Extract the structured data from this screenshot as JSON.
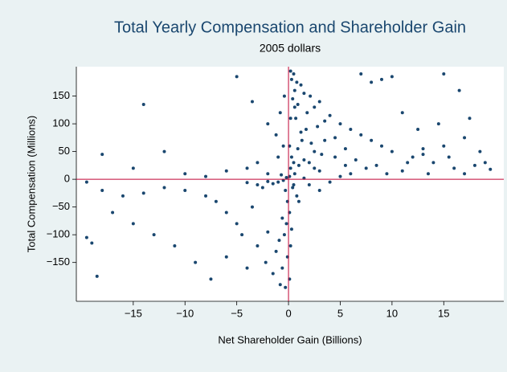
{
  "chart_data": {
    "type": "scatter",
    "title": "Total Yearly Compensation and Shareholder Gain",
    "subtitle": "2005 dollars",
    "x_label": "Net Shareholder Gain (Billions)",
    "y_label": "Total Compensation (Millions)",
    "color": "#1a476f",
    "reference_color": "#c10534",
    "xline": 0,
    "yline": 0,
    "xlim": [
      -20.5,
      20.8
    ],
    "ylim": [
      -220,
      203
    ],
    "xticks": [
      {
        "value": -15,
        "label": "−15"
      },
      {
        "value": -10,
        "label": "−10"
      },
      {
        "value": -5,
        "label": "−5"
      },
      0,
      5,
      10,
      15
    ],
    "yticks": [
      {
        "value": -150,
        "label": "−150"
      },
      {
        "value": -100,
        "label": "−100"
      },
      {
        "value": -50,
        "label": "−50"
      },
      0,
      50,
      100,
      150
    ],
    "x": [
      0.2,
      0.5,
      0.3,
      0.8,
      1.2,
      0.6,
      1.5,
      2.1,
      0.4,
      3,
      0.9,
      2.5,
      1.8,
      4,
      0.7,
      3.5,
      5,
      2.8,
      6,
      1.2,
      7,
      4.5,
      8,
      2.2,
      9,
      5.5,
      10,
      3.2,
      12,
      6.5,
      14,
      8.5,
      16,
      11,
      18,
      13,
      15,
      17,
      19,
      14.5,
      16.5,
      15,
      10,
      9,
      7,
      8,
      11,
      12.5,
      17.5,
      18.5,
      13.5,
      19.5,
      0.1,
      0.3,
      0.5,
      0.2,
      0.6,
      1,
      1.5,
      2,
      2.5,
      3,
      0.1,
      -0.2,
      -0.5,
      -1,
      -1.5,
      -2,
      -3,
      -4,
      -2.5,
      -0.3,
      -0.1,
      0.1,
      -0.2,
      -0.4,
      0.2,
      -0.1,
      -0.6,
      0.1,
      -0.3,
      -0.8,
      -1.5,
      -2.2,
      -1.2,
      -3,
      -4.5,
      -2,
      -5,
      -6,
      -3.5,
      -7,
      -8,
      -10,
      -12,
      -14,
      -16,
      -18,
      -19.5,
      -17,
      -15,
      -13,
      -11,
      -9,
      -7.5,
      -6,
      -4,
      -19,
      -19.5,
      -18.5,
      -14,
      -5,
      -12,
      -18,
      -15,
      -10,
      -8,
      -6,
      -4,
      -2,
      -3,
      -1,
      -0.5,
      -1.2,
      -2,
      -3.5,
      -0.8,
      -0.4,
      2,
      3,
      1,
      4,
      5,
      6,
      0.4,
      0.8,
      1.5,
      2.5,
      3.5,
      4.5,
      5.5,
      7.5,
      9.5,
      11.5,
      13,
      15.5,
      17,
      -0.6,
      0.3,
      -0.9,
      0.5,
      -0.7,
      0.9,
      1.3,
      1.7,
      0.2,
      0.6
    ],
    "y": [
      195,
      190,
      180,
      175,
      170,
      160,
      155,
      150,
      145,
      140,
      135,
      130,
      120,
      115,
      110,
      105,
      100,
      95,
      90,
      85,
      80,
      75,
      70,
      65,
      60,
      55,
      50,
      45,
      40,
      35,
      30,
      25,
      20,
      15,
      25,
      45,
      60,
      75,
      30,
      100,
      160,
      190,
      185,
      180,
      190,
      175,
      120,
      90,
      110,
      50,
      10,
      18,
      60,
      40,
      30,
      20,
      10,
      25,
      35,
      30,
      20,
      15,
      5,
      3,
      -2,
      -5,
      -8,
      -4,
      -10,
      -6,
      -15,
      -20,
      -40,
      -60,
      -80,
      -100,
      -120,
      -140,
      -160,
      -180,
      -195,
      -190,
      -170,
      -150,
      -130,
      -120,
      -100,
      -95,
      -80,
      -60,
      -50,
      -40,
      -30,
      -20,
      -15,
      -25,
      -30,
      -20,
      -5,
      -60,
      -80,
      -100,
      -120,
      -150,
      -180,
      -140,
      -160,
      -115,
      -105,
      -175,
      135,
      185,
      50,
      45,
      20,
      10,
      5,
      15,
      20,
      10,
      30,
      40,
      60,
      80,
      100,
      140,
      120,
      150,
      -10,
      -20,
      -40,
      -5,
      5,
      10,
      -15,
      -30,
      2,
      50,
      70,
      40,
      25,
      20,
      10,
      30,
      55,
      40,
      10,
      -70,
      -90,
      -110,
      -10,
      8,
      55,
      70,
      90,
      110,
      130
    ]
  }
}
